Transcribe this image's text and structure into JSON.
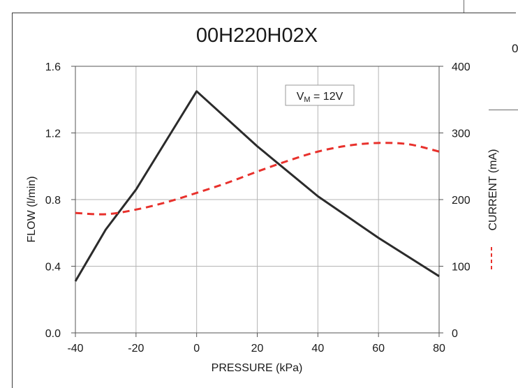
{
  "chart_data": {
    "type": "line",
    "title": "00H220H02X",
    "xlabel": "PRESSURE (kPa)",
    "ylabel": "FLOW (l/min)",
    "y2label": "CURRENT (mA)",
    "xlim": [
      -40,
      80
    ],
    "ylim": [
      0,
      1.6
    ],
    "y2lim": [
      0,
      400
    ],
    "x_ticks": [
      "-40",
      "-20",
      "0",
      "20",
      "40",
      "60",
      "80"
    ],
    "y_ticks": [
      "0.0",
      "0.4",
      "0.8",
      "1.2",
      "1.6"
    ],
    "y2_ticks": [
      "0",
      "100",
      "200",
      "300",
      "400"
    ],
    "grid": true,
    "annotation": {
      "main": "V",
      "sub": "M",
      "rest": " = 12V"
    },
    "series": [
      {
        "axis": "left",
        "style": "solid",
        "color": "#2b2b2b",
        "x": [
          -40,
          -30,
          -20,
          0,
          20,
          40,
          60,
          80
        ],
        "values": [
          0.31,
          0.62,
          0.86,
          1.45,
          1.12,
          0.82,
          0.57,
          0.34
        ]
      },
      {
        "axis": "right",
        "name": "CURRENT",
        "style": "dashed",
        "color": "#e8312c",
        "x": [
          -40,
          -30,
          -20,
          -10,
          0,
          10,
          20,
          30,
          40,
          50,
          60,
          70,
          80
        ],
        "values": [
          180,
          178,
          185,
          196,
          210,
          225,
          242,
          258,
          272,
          281,
          285,
          283,
          272
        ]
      }
    ],
    "legend": {
      "position": "right-axis",
      "entry": "CURRENT"
    }
  },
  "stray": {
    "glyph": "0"
  }
}
